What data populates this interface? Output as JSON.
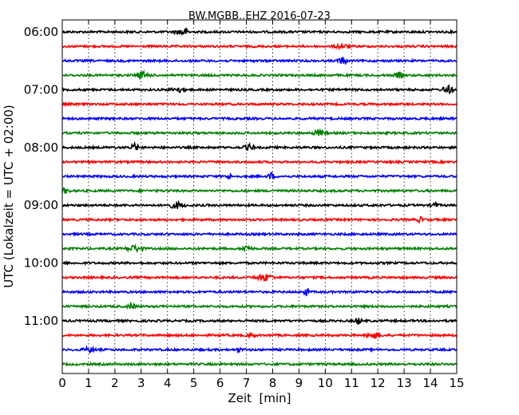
{
  "chart_data": {
    "type": "line",
    "title": "BW.MGBB..EHZ 2016-07-23",
    "xlabel": "Zeit  [min]",
    "ylabel": "UTC (Lokalzeit = UTC + 02:00)",
    "xlim": [
      0,
      15
    ],
    "x_ticks": [
      "0",
      "1",
      "2",
      "3",
      "4",
      "5",
      "6",
      "7",
      "8",
      "9",
      "10",
      "11",
      "12",
      "13",
      "14",
      "15"
    ],
    "y_tick_labels": [
      "06:00",
      "07:00",
      "08:00",
      "09:00",
      "10:00",
      "11:00"
    ],
    "grid": "vertical dotted",
    "traces_per_hour": 4,
    "trace_minutes": 15,
    "trace_start_times": [
      "06:00",
      "06:15",
      "06:30",
      "06:45",
      "07:00",
      "07:15",
      "07:30",
      "07:45",
      "08:00",
      "08:15",
      "08:30",
      "08:45",
      "09:00",
      "09:15",
      "09:30",
      "09:45",
      "10:00",
      "10:15",
      "10:30",
      "10:45",
      "11:00",
      "11:15",
      "11:30",
      "11:45"
    ],
    "trace_colors": [
      "#000000",
      "#ff0000",
      "#0000ff",
      "#008000"
    ]
  }
}
